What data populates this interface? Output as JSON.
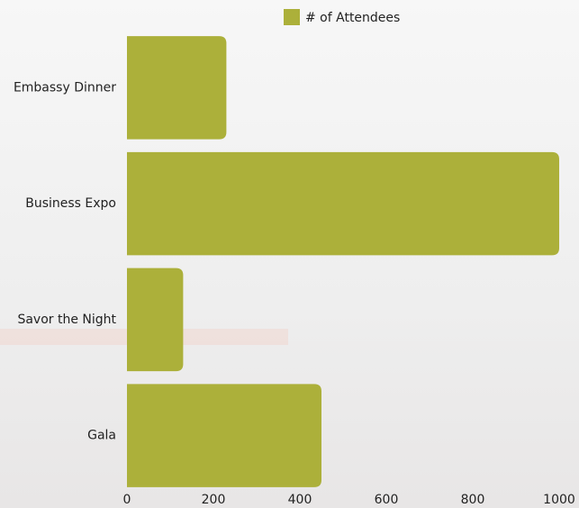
{
  "chart_data": {
    "type": "bar",
    "orientation": "horizontal",
    "categories": [
      "Embassy Dinner",
      "Business Expo",
      "Savor the Night",
      "Gala"
    ],
    "series": [
      {
        "name": "# of Attendees",
        "color": "#acb03a",
        "values": [
          230,
          1000,
          130,
          450
        ]
      }
    ],
    "xlim": [
      0,
      1000
    ],
    "xticks": [
      0,
      200,
      400,
      600,
      800,
      1000
    ],
    "grid": false,
    "legend": "top"
  }
}
